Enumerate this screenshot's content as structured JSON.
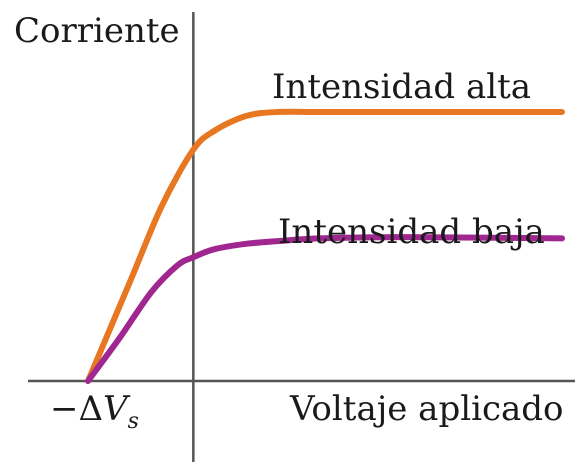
{
  "chart_data": {
    "type": "line",
    "ylabel": "Corriente",
    "xlabel": "Voltaje aplicado",
    "x_tick": {
      "prefix": "−Δ",
      "symbol": "V",
      "subscript": "s"
    },
    "stopping_voltage": -1.0,
    "xlim": [
      -1.0,
      3.5
    ],
    "ylim": [
      0,
      1.05
    ],
    "grid": false,
    "legend": "inline",
    "series": [
      {
        "name": "Intensidad alta",
        "color": "#e87722",
        "x": [
          -1.0,
          -0.6,
          -0.3,
          0.0,
          0.2,
          0.5,
          0.8,
          1.2,
          2.0,
          3.5
        ],
        "y": [
          0.0,
          0.37,
          0.65,
          0.86,
          0.93,
          0.985,
          1.0,
          1.0,
          1.0,
          1.0
        ]
      },
      {
        "name": "Intensidad baja",
        "color": "#a0278f",
        "x": [
          -1.0,
          -0.7,
          -0.4,
          -0.15,
          0.0,
          0.2,
          0.5,
          0.8,
          1.2,
          2.0,
          3.5
        ],
        "y": [
          0.0,
          0.16,
          0.33,
          0.43,
          0.46,
          0.49,
          0.51,
          0.52,
          0.53,
          0.535,
          0.53
        ]
      }
    ]
  }
}
